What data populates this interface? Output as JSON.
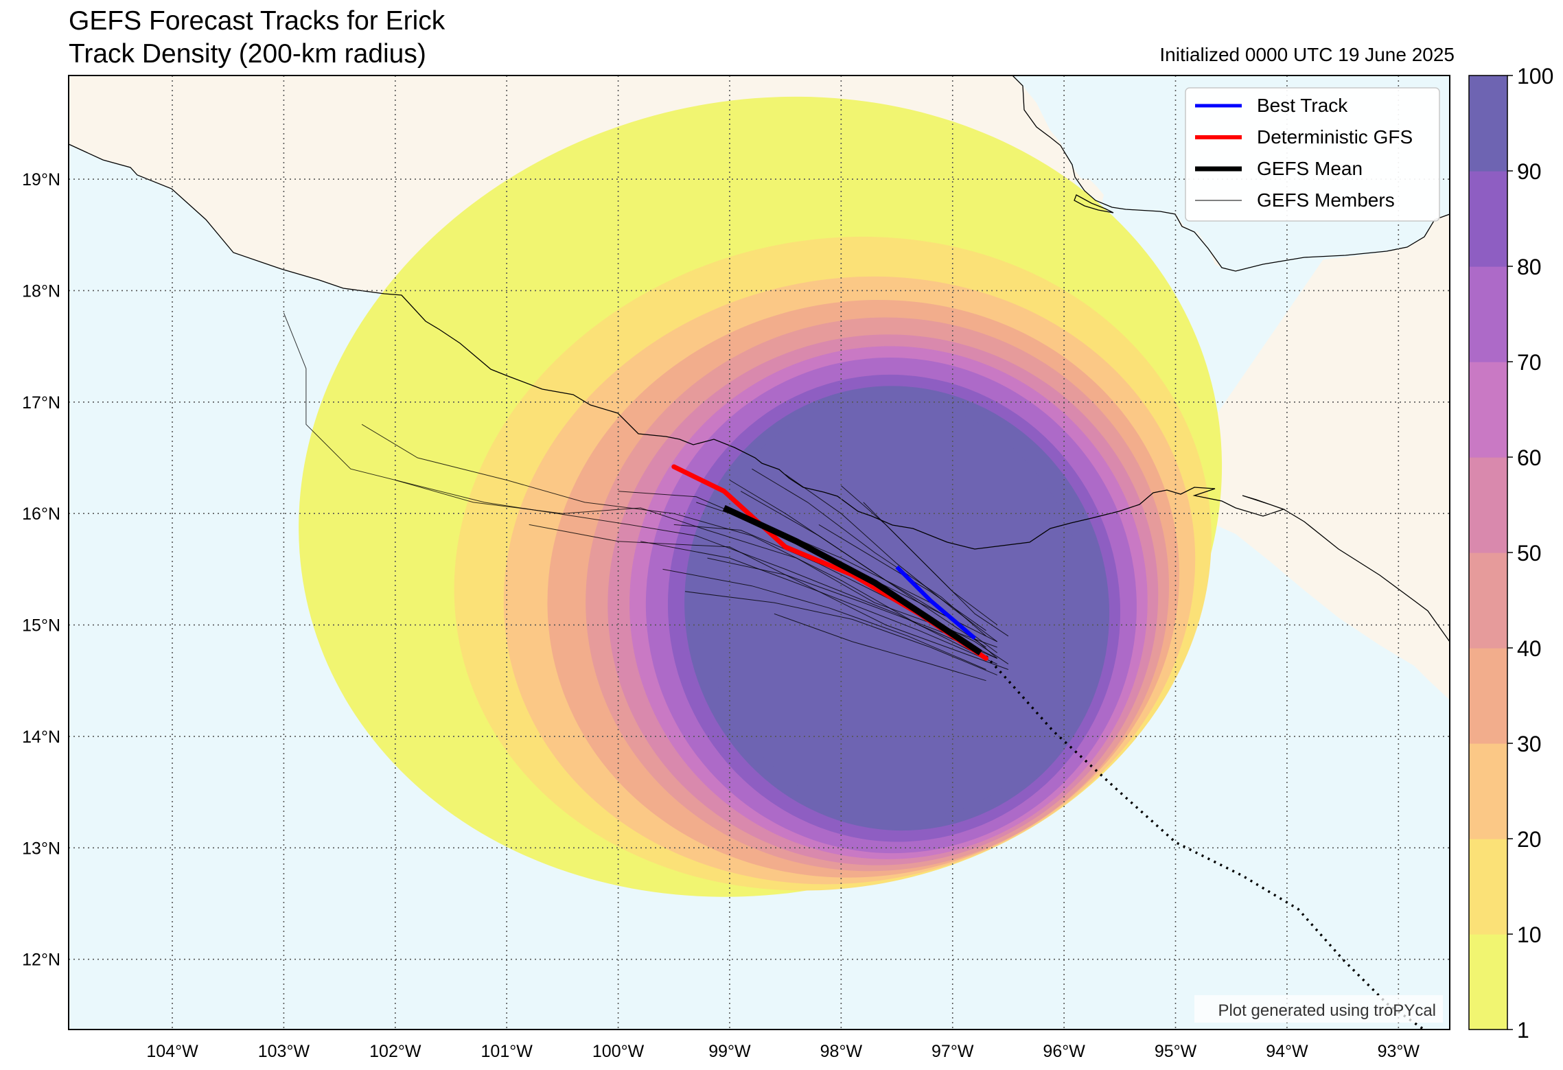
{
  "title_line1": "GEFS Forecast Tracks for Erick",
  "title_line2": "Track Density (200-km radius)",
  "init_label": "Initialized 0000 UTC 19 June 2025",
  "credit": "Plot generated using troPYcal",
  "colors": {
    "ocean": "#eaf8fc",
    "land": "#fbf5eb",
    "best_track": "#0000ff",
    "deterministic": "#ff0000",
    "mean": "#000000",
    "members": "#000000",
    "density_levels": [
      "#f1f571",
      "#fbe177",
      "#fbc886",
      "#f2ad8c",
      "#e69b9b",
      "#d989ad",
      "#c979c4",
      "#ad6ac8",
      "#8e5ec2",
      "#6e64b2"
    ]
  },
  "map": {
    "lon_range": [
      -104.93,
      -92.54
    ],
    "lat_range": [
      11.37,
      19.93
    ],
    "lon_ticks": [
      -104,
      -103,
      -102,
      -101,
      -100,
      -99,
      -98,
      -97,
      -96,
      -95,
      -94,
      -93
    ],
    "lon_labels": [
      "104°W",
      "103°W",
      "102°W",
      "101°W",
      "100°W",
      "99°W",
      "98°W",
      "97°W",
      "96°W",
      "95°W",
      "94°W",
      "93°W"
    ],
    "lat_ticks": [
      12,
      13,
      14,
      15,
      16,
      17,
      18,
      19
    ],
    "lat_labels": [
      "12°N",
      "13°N",
      "14°N",
      "15°N",
      "16°N",
      "17°N",
      "18°N",
      "19°N"
    ]
  },
  "legend": {
    "position": "top-right",
    "entries": [
      {
        "key": "best",
        "label": "Best Track"
      },
      {
        "key": "deterministic",
        "label": "Deterministic GFS"
      },
      {
        "key": "mean",
        "label": "GEFS Mean"
      },
      {
        "key": "members",
        "label": "GEFS Members"
      }
    ]
  },
  "colorbar": {
    "levels": [
      1,
      10,
      20,
      30,
      40,
      50,
      60,
      70,
      80,
      90,
      100
    ],
    "tick_labels": [
      "1",
      "10",
      "20",
      "30",
      "40",
      "50",
      "60",
      "70",
      "80",
      "90",
      "100"
    ]
  },
  "chart_data": {
    "type": "map",
    "density_center": [
      -97.4,
      15.2
    ],
    "density_extent": {
      "lon_min": [
        -99.25,
        -99.4,
        -99.55,
        -99.75,
        -99.9,
        -100.1,
        -100.3,
        -100.65,
        -101.05,
        -101.5,
        -102.9
      ],
      "lon_max": [
        -95.8,
        -95.6,
        -95.5,
        -95.35,
        -95.25,
        -95.15,
        -95.05,
        -94.95,
        -94.8,
        -94.65,
        -94.55
      ],
      "lat_min": [
        13.25,
        13.15,
        13.05,
        12.95,
        12.9,
        12.85,
        12.8,
        12.75,
        12.7,
        12.65,
        12.6
      ],
      "lat_max": [
        17.05,
        17.15,
        17.25,
        17.4,
        17.5,
        17.6,
        17.75,
        17.9,
        18.1,
        18.45,
        19.7
      ]
    },
    "best_track": [
      [
        -97.5,
        15.52
      ],
      [
        -97.2,
        15.22
      ],
      [
        -96.8,
        14.88
      ]
    ],
    "deterministic_gfs": [
      [
        -99.5,
        16.42
      ],
      [
        -99.05,
        16.2
      ],
      [
        -98.5,
        15.7
      ],
      [
        -97.9,
        15.45
      ],
      [
        -97.3,
        15.1
      ],
      [
        -96.7,
        14.7
      ]
    ],
    "gefs_mean": [
      [
        -99.05,
        16.05
      ],
      [
        -98.4,
        15.75
      ],
      [
        -97.7,
        15.38
      ],
      [
        -97.2,
        15.05
      ],
      [
        -96.75,
        14.75
      ]
    ],
    "gefs_mean_extension": [
      [
        -96.7,
        14.72
      ],
      [
        -96.5,
        14.5
      ],
      [
        -96.1,
        14.05
      ],
      [
        -95.5,
        13.5
      ],
      [
        -95.0,
        13.05
      ],
      [
        -94.4,
        12.75
      ],
      [
        -93.9,
        12.45
      ],
      [
        -93.5,
        12.0
      ],
      [
        -93.1,
        11.6
      ],
      [
        -92.7,
        11.32
      ]
    ],
    "gefs_members": [
      [
        [
          -103.0,
          17.8
        ],
        [
          -102.8,
          17.3
        ],
        [
          -102.8,
          16.8
        ],
        [
          -102.4,
          16.4
        ],
        [
          -101.2,
          16.1
        ],
        [
          -99.9,
          15.9
        ],
        [
          -99.3,
          15.8
        ],
        [
          -98.5,
          15.5
        ],
        [
          -97.5,
          15.1
        ],
        [
          -96.7,
          14.7
        ]
      ],
      [
        [
          -102.3,
          16.8
        ],
        [
          -101.8,
          16.5
        ],
        [
          -101.0,
          16.3
        ],
        [
          -100.3,
          16.1
        ],
        [
          -99.5,
          16.0
        ],
        [
          -98.8,
          15.8
        ],
        [
          -98.0,
          15.4
        ],
        [
          -97.3,
          15.0
        ],
        [
          -96.6,
          14.7
        ]
      ],
      [
        [
          -102.0,
          16.3
        ],
        [
          -101.3,
          16.1
        ],
        [
          -100.5,
          16.0
        ],
        [
          -99.8,
          16.05
        ],
        [
          -99.2,
          15.85
        ],
        [
          -98.4,
          15.6
        ],
        [
          -97.7,
          15.2
        ],
        [
          -96.6,
          14.8
        ]
      ],
      [
        [
          -100.8,
          15.9
        ],
        [
          -100.0,
          15.75
        ],
        [
          -99.0,
          15.7
        ],
        [
          -98.4,
          15.4
        ],
        [
          -97.6,
          15.0
        ],
        [
          -96.5,
          14.6
        ]
      ],
      [
        [
          -99.0,
          16.3
        ],
        [
          -98.5,
          16.0
        ],
        [
          -97.9,
          15.6
        ],
        [
          -97.3,
          15.2
        ],
        [
          -96.7,
          14.8
        ]
      ],
      [
        [
          -98.5,
          16.35
        ],
        [
          -98.0,
          16.0
        ],
        [
          -97.5,
          15.55
        ],
        [
          -97.0,
          15.15
        ],
        [
          -96.6,
          14.85
        ]
      ],
      [
        [
          -98.0,
          16.25
        ],
        [
          -97.6,
          15.9
        ],
        [
          -97.2,
          15.5
        ],
        [
          -96.8,
          15.1
        ],
        [
          -96.5,
          14.9
        ]
      ],
      [
        [
          -99.6,
          15.5
        ],
        [
          -98.8,
          15.35
        ],
        [
          -98.1,
          15.15
        ],
        [
          -97.4,
          14.9
        ],
        [
          -96.7,
          14.6
        ]
      ],
      [
        [
          -99.3,
          16.1
        ],
        [
          -98.7,
          15.9
        ],
        [
          -98.0,
          15.6
        ],
        [
          -97.2,
          15.2
        ],
        [
          -96.6,
          14.75
        ]
      ],
      [
        [
          -100.0,
          16.2
        ],
        [
          -99.3,
          16.15
        ],
        [
          -98.6,
          15.85
        ],
        [
          -97.8,
          15.45
        ],
        [
          -97.0,
          15.05
        ],
        [
          -96.6,
          14.7
        ]
      ],
      [
        [
          -98.8,
          16.4
        ],
        [
          -98.3,
          16.1
        ],
        [
          -97.7,
          15.65
        ],
        [
          -97.1,
          15.25
        ],
        [
          -96.7,
          14.9
        ]
      ],
      [
        [
          -99.4,
          15.3
        ],
        [
          -98.6,
          15.2
        ],
        [
          -97.9,
          15.05
        ],
        [
          -97.2,
          14.8
        ],
        [
          -96.6,
          14.55
        ]
      ],
      [
        [
          -99.2,
          15.6
        ],
        [
          -98.5,
          15.45
        ],
        [
          -97.8,
          15.2
        ],
        [
          -97.0,
          14.9
        ],
        [
          -96.6,
          14.7
        ]
      ],
      [
        [
          -98.2,
          15.9
        ],
        [
          -97.7,
          15.6
        ],
        [
          -97.2,
          15.3
        ],
        [
          -96.7,
          14.95
        ]
      ],
      [
        [
          -97.8,
          16.1
        ],
        [
          -97.4,
          15.7
        ],
        [
          -97.0,
          15.3
        ],
        [
          -96.6,
          15.0
        ]
      ],
      [
        [
          -99.8,
          15.75
        ],
        [
          -99.0,
          15.6
        ],
        [
          -98.2,
          15.3
        ],
        [
          -97.3,
          14.95
        ],
        [
          -96.6,
          14.65
        ]
      ],
      [
        [
          -98.6,
          15.1
        ],
        [
          -97.9,
          14.85
        ],
        [
          -97.2,
          14.65
        ],
        [
          -96.7,
          14.5
        ]
      ],
      [
        [
          -99.5,
          15.9
        ],
        [
          -98.9,
          15.85
        ],
        [
          -98.2,
          15.55
        ],
        [
          -97.5,
          15.2
        ],
        [
          -96.8,
          14.85
        ],
        [
          -96.5,
          14.65
        ]
      ],
      [
        [
          -98.9,
          16.2
        ],
        [
          -98.2,
          15.8
        ],
        [
          -97.6,
          15.4
        ],
        [
          -97.1,
          15.1
        ],
        [
          -96.6,
          14.85
        ]
      ]
    ]
  }
}
